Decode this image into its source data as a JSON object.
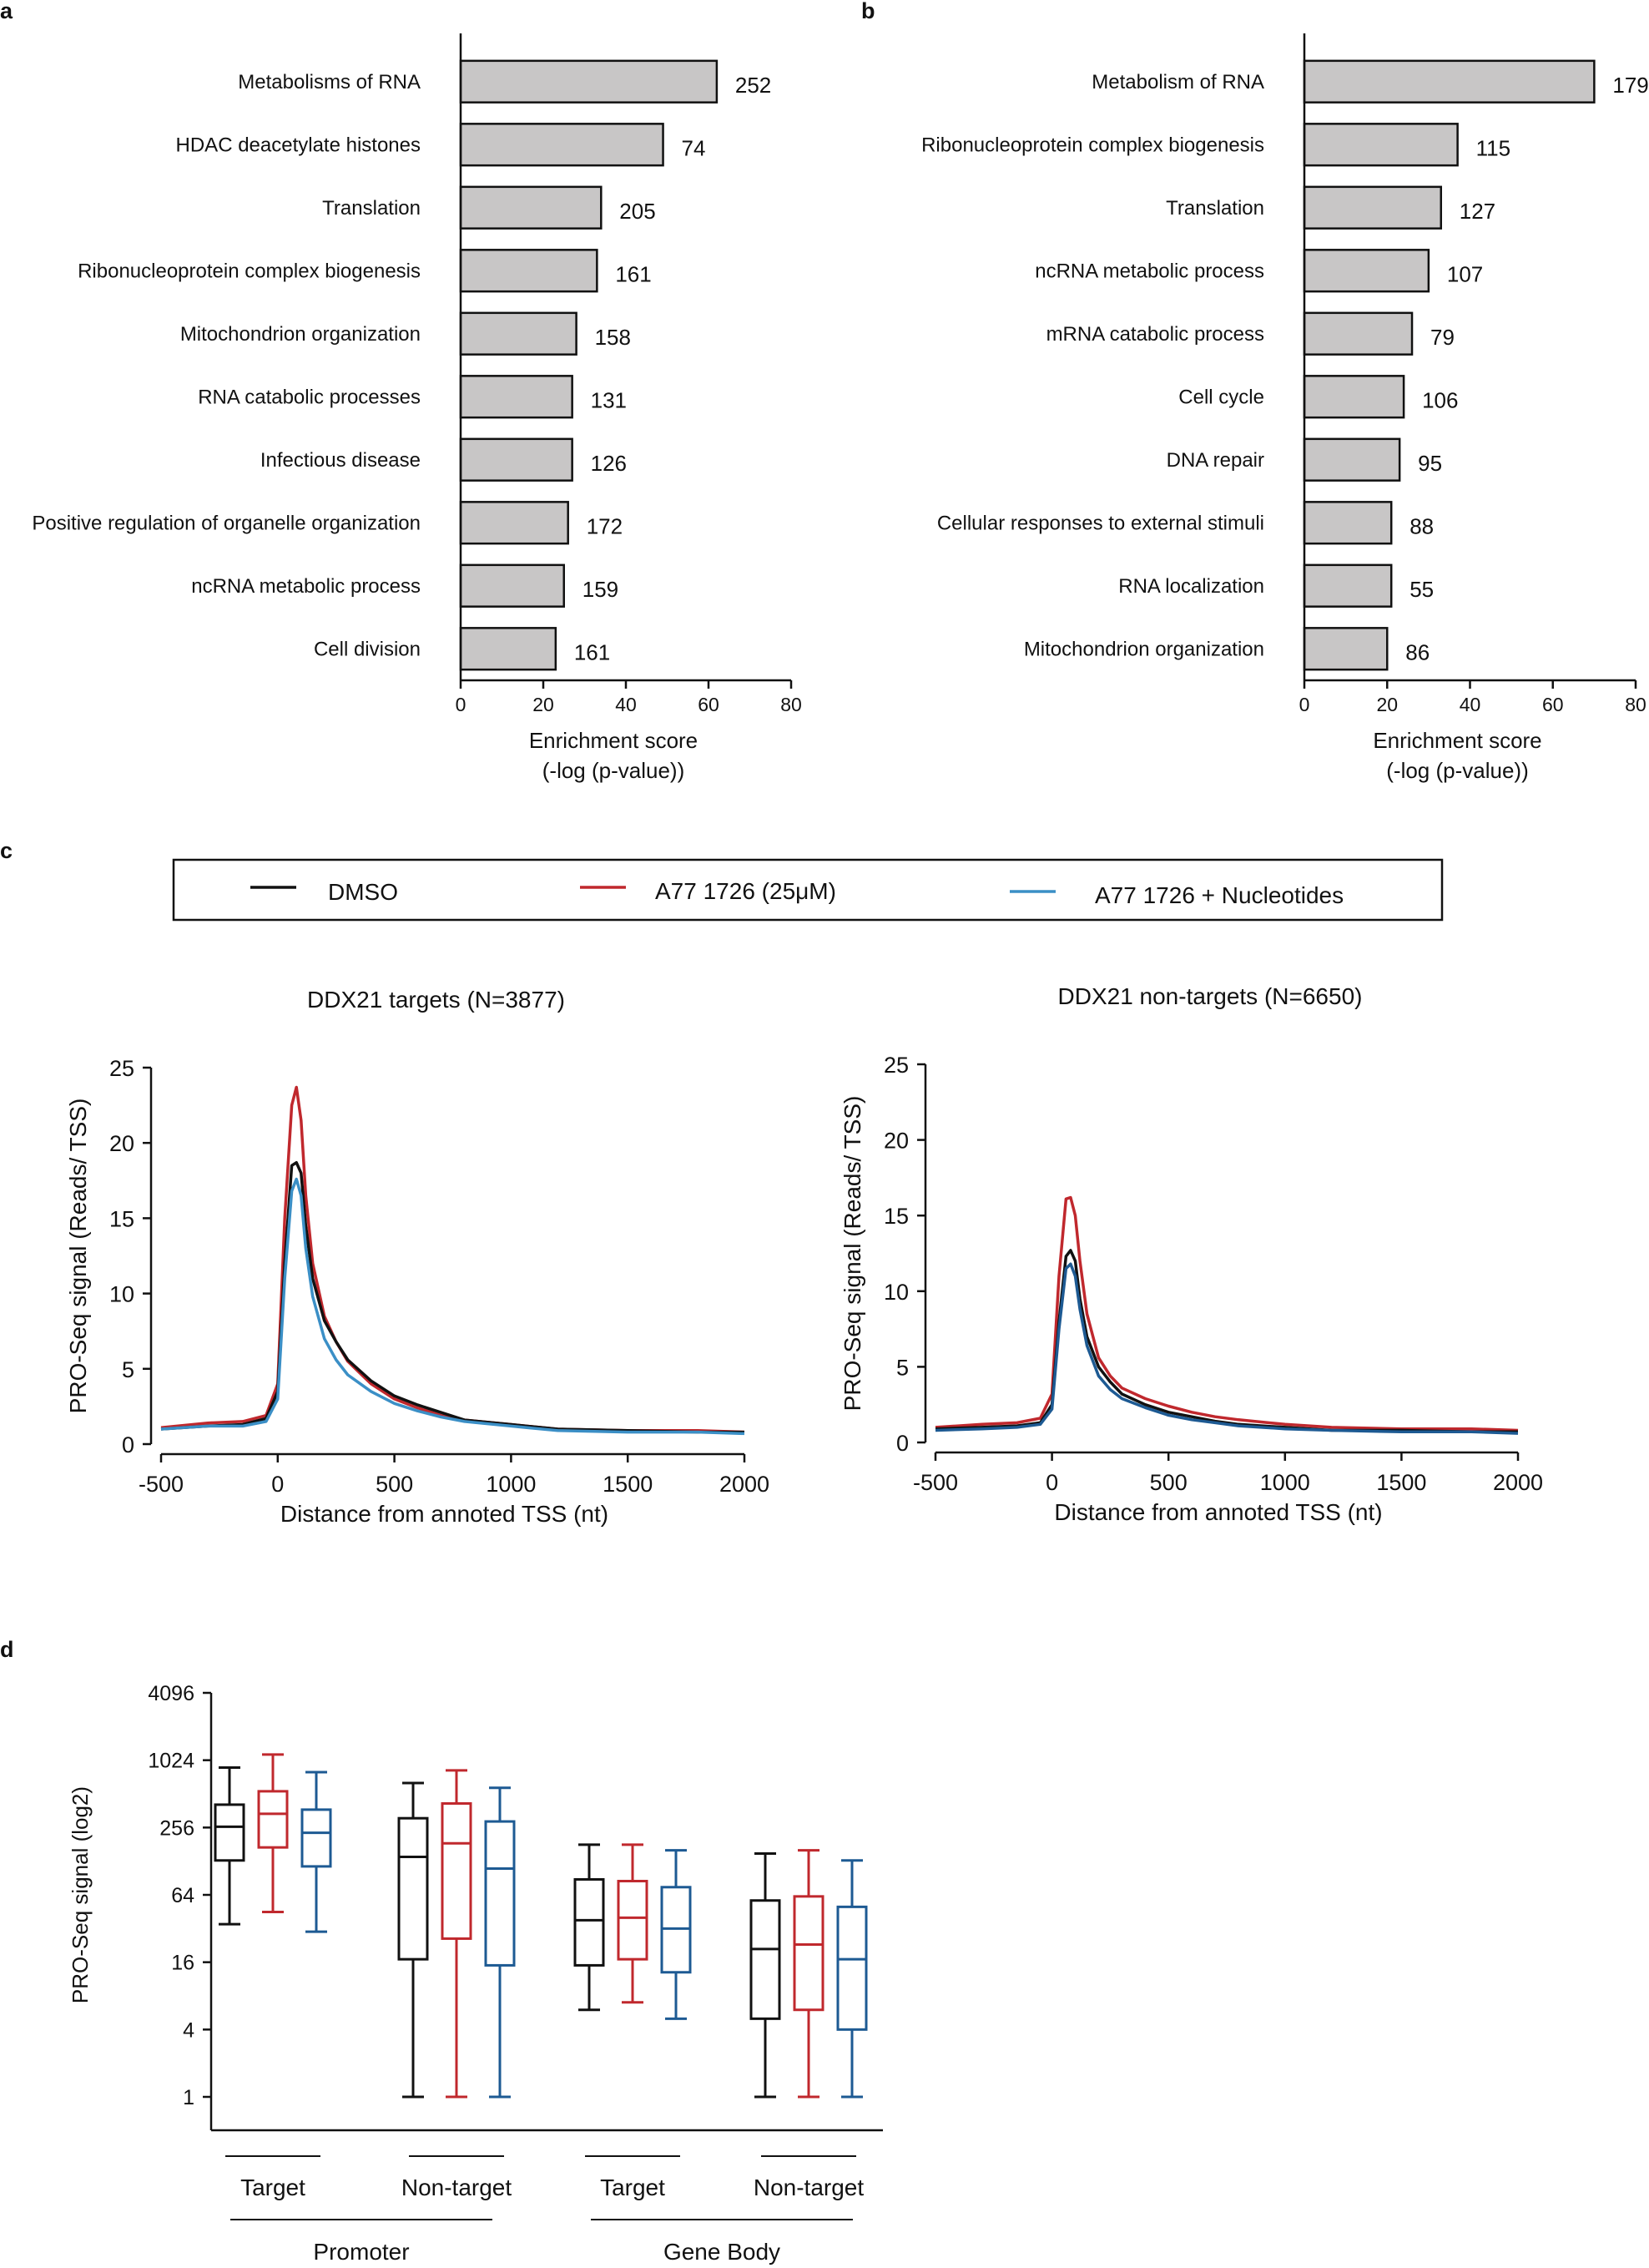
{
  "colors": {
    "bar_fill": "#c8c6c6",
    "bar_stroke": "#111111",
    "dmso": "#111111",
    "a77": "#c0282d",
    "nucleotides": "#3b8fc6",
    "nucleotides_dark": "#1d5a93"
  },
  "chart_data": [
    {
      "panel": "a",
      "type": "bar",
      "orientation": "horizontal",
      "categories": [
        "Metabolisms of RNA",
        "HDAC deacetylate histones",
        "Translation",
        "Ribonucleoprotein complex biogenesis",
        "Mitochondrion organization",
        "RNA catabolic processes",
        "Infectious disease",
        "Positive regulation of organelle organization",
        "ncRNA metabolic process",
        "Cell division"
      ],
      "values": [
        62,
        49,
        34,
        33,
        28,
        27,
        27,
        26,
        25,
        23
      ],
      "labels": [
        "252",
        "74",
        "205",
        "161",
        "158",
        "131",
        "126",
        "172",
        "159",
        "161"
      ],
      "xlabel": "Enrichment score",
      "xlabel2": "(-log (p-value))",
      "xlim": [
        0,
        80
      ],
      "xticks": [
        0,
        20,
        40,
        60,
        80
      ]
    },
    {
      "panel": "b",
      "type": "bar",
      "orientation": "horizontal",
      "categories": [
        "Metabolism of RNA",
        "Ribonucleoprotein complex biogenesis",
        "Translation",
        "ncRNA metabolic process",
        "mRNA catabolic process",
        "Cell cycle",
        "DNA repair",
        "Cellular responses to external stimuli",
        "RNA localization",
        "Mitochondrion organization"
      ],
      "values": [
        70,
        37,
        33,
        30,
        26,
        24,
        23,
        21,
        21,
        20
      ],
      "labels": [
        "179",
        "115",
        "127",
        "107",
        "79",
        "106",
        "95",
        "88",
        "55",
        "86"
      ],
      "xlabel": "Enrichment score",
      "xlabel2": "(-log (p-value))",
      "xlim": [
        0,
        80
      ],
      "xticks": [
        0,
        20,
        40,
        60,
        80
      ]
    },
    {
      "panel": "c-left",
      "type": "line",
      "title": "DDX21 targets (N=3877)",
      "xlabel": "Distance from annoted TSS (nt)",
      "ylabel": "PRO-Seq signal (Reads/ TSS)",
      "xlim": [
        -500,
        2000
      ],
      "ylim": [
        0,
        25
      ],
      "xticks": [
        -500,
        0,
        500,
        1000,
        1500,
        2000
      ],
      "yticks": [
        0,
        5,
        10,
        15,
        20,
        25
      ],
      "series": [
        {
          "name": "DMSO",
          "x": [
            -500,
            -300,
            -150,
            -50,
            0,
            30,
            60,
            80,
            100,
            120,
            150,
            200,
            250,
            300,
            400,
            500,
            600,
            700,
            800,
            1000,
            1200,
            1500,
            1800,
            2000
          ],
          "y": [
            1.0,
            1.2,
            1.3,
            1.7,
            3.5,
            12.0,
            18.5,
            18.7,
            18.0,
            14.5,
            11.0,
            8.2,
            6.8,
            5.6,
            4.2,
            3.2,
            2.6,
            2.1,
            1.6,
            1.3,
            1.0,
            0.9,
            0.8,
            0.8
          ]
        },
        {
          "name": "A77 1726 (25μM)",
          "x": [
            -500,
            -300,
            -150,
            -50,
            0,
            30,
            60,
            80,
            100,
            120,
            150,
            200,
            250,
            300,
            400,
            500,
            600,
            700,
            800,
            1000,
            1200,
            1500,
            1800,
            2000
          ],
          "y": [
            1.1,
            1.4,
            1.5,
            1.9,
            4.0,
            15.0,
            22.5,
            23.7,
            21.5,
            16.5,
            12.0,
            8.5,
            6.8,
            5.5,
            4.0,
            3.0,
            2.4,
            1.9,
            1.6,
            1.3,
            1.0,
            0.9,
            0.9,
            0.8
          ]
        },
        {
          "name": "A77 1726 + Nucleotides",
          "x": [
            -500,
            -300,
            -150,
            -50,
            0,
            30,
            60,
            80,
            100,
            120,
            150,
            200,
            250,
            300,
            400,
            500,
            600,
            700,
            800,
            1000,
            1200,
            1500,
            1800,
            2000
          ],
          "y": [
            1.0,
            1.2,
            1.2,
            1.5,
            3.0,
            11.0,
            16.8,
            17.6,
            16.5,
            13.0,
            9.8,
            7.0,
            5.6,
            4.6,
            3.5,
            2.7,
            2.2,
            1.8,
            1.5,
            1.2,
            0.9,
            0.8,
            0.8,
            0.7
          ]
        }
      ]
    },
    {
      "panel": "c-right",
      "type": "line",
      "title": "DDX21 non-targets (N=6650)",
      "xlabel": "Distance from annoted TSS (nt)",
      "ylabel": "PRO-Seq signal (Reads/ TSS)",
      "xlim": [
        -500,
        2000
      ],
      "ylim": [
        0,
        25
      ],
      "xticks": [
        -500,
        0,
        500,
        1000,
        1500,
        2000
      ],
      "yticks": [
        0,
        5,
        10,
        15,
        20,
        25
      ],
      "series": [
        {
          "name": "DMSO",
          "x": [
            -500,
            -300,
            -150,
            -50,
            0,
            30,
            60,
            80,
            100,
            120,
            150,
            200,
            250,
            300,
            400,
            500,
            600,
            700,
            800,
            1000,
            1200,
            1500,
            1800,
            2000
          ],
          "y": [
            0.9,
            1.0,
            1.1,
            1.3,
            2.5,
            8.0,
            12.3,
            12.7,
            12.0,
            9.5,
            7.0,
            5.0,
            4.0,
            3.2,
            2.5,
            2.0,
            1.7,
            1.4,
            1.2,
            1.0,
            0.8,
            0.8,
            0.7,
            0.7
          ]
        },
        {
          "name": "A77 1726 (25μM)",
          "x": [
            -500,
            -300,
            -150,
            -50,
            0,
            30,
            60,
            80,
            100,
            120,
            150,
            200,
            250,
            300,
            400,
            500,
            600,
            700,
            800,
            1000,
            1200,
            1500,
            1800,
            2000
          ],
          "y": [
            1.0,
            1.2,
            1.3,
            1.6,
            3.2,
            11.0,
            16.1,
            16.2,
            15.0,
            12.0,
            8.5,
            5.6,
            4.4,
            3.6,
            2.9,
            2.4,
            2.0,
            1.7,
            1.5,
            1.2,
            1.0,
            0.9,
            0.9,
            0.8
          ]
        },
        {
          "name": "A77 1726 + Nucleotides",
          "x": [
            -500,
            -300,
            -150,
            -50,
            0,
            30,
            60,
            80,
            100,
            120,
            150,
            200,
            250,
            300,
            400,
            500,
            600,
            700,
            800,
            1000,
            1200,
            1500,
            1800,
            2000
          ],
          "y": [
            0.8,
            0.9,
            1.0,
            1.2,
            2.2,
            7.5,
            11.5,
            11.8,
            11.0,
            8.8,
            6.4,
            4.4,
            3.5,
            2.9,
            2.3,
            1.8,
            1.5,
            1.3,
            1.1,
            0.9,
            0.8,
            0.7,
            0.7,
            0.6
          ]
        }
      ]
    },
    {
      "panel": "d",
      "type": "box",
      "ylabel": "PRO-Seq signal (log2)",
      "yscale": "log2",
      "ylim": [
        1,
        4096
      ],
      "yticks": [
        1,
        4,
        16,
        64,
        256,
        1024,
        4096
      ],
      "subgroup_labels": [
        "Target",
        "Non-target",
        "Target",
        "Non-target"
      ],
      "group_labels": [
        "Promoter",
        "Gene Body"
      ],
      "series_names": [
        "DMSO",
        "A77 1726 (25μM)",
        "A77 1726 + Nucleotides"
      ],
      "boxes": [
        {
          "group": "Promoter",
          "subgroup": "Target",
          "series": "DMSO",
          "min": 35,
          "q1": 130,
          "median": 260,
          "q3": 410,
          "max": 880
        },
        {
          "group": "Promoter",
          "subgroup": "Target",
          "series": "A77 1726 (25μM)",
          "min": 45,
          "q1": 170,
          "median": 340,
          "q3": 540,
          "max": 1150
        },
        {
          "group": "Promoter",
          "subgroup": "Target",
          "series": "A77 1726 + Nucleotides",
          "min": 30,
          "q1": 115,
          "median": 230,
          "q3": 370,
          "max": 800
        },
        {
          "group": "Promoter",
          "subgroup": "Non-target",
          "series": "DMSO",
          "min": 1,
          "q1": 17,
          "median": 140,
          "q3": 310,
          "max": 640
        },
        {
          "group": "Promoter",
          "subgroup": "Non-target",
          "series": "A77 1726 (25μM)",
          "min": 1,
          "q1": 26,
          "median": 185,
          "q3": 420,
          "max": 830
        },
        {
          "group": "Promoter",
          "subgroup": "Non-target",
          "series": "A77 1726 + Nucleotides",
          "min": 1,
          "q1": 15,
          "median": 110,
          "q3": 290,
          "max": 580
        },
        {
          "group": "Gene Body",
          "subgroup": "Target",
          "series": "DMSO",
          "min": 6,
          "q1": 15,
          "median": 38,
          "q3": 88,
          "max": 180
        },
        {
          "group": "Gene Body",
          "subgroup": "Target",
          "series": "A77 1726 (25μM)",
          "min": 7,
          "q1": 17,
          "median": 40,
          "q3": 85,
          "max": 180
        },
        {
          "group": "Gene Body",
          "subgroup": "Target",
          "series": "A77 1726 + Nucleotides",
          "min": 5,
          "q1": 13,
          "median": 32,
          "q3": 75,
          "max": 160
        },
        {
          "group": "Gene Body",
          "subgroup": "Non-target",
          "series": "DMSO",
          "min": 1,
          "q1": 5,
          "median": 21,
          "q3": 57,
          "max": 150
        },
        {
          "group": "Gene Body",
          "subgroup": "Non-target",
          "series": "A77 1726 (25μM)",
          "min": 1,
          "q1": 6,
          "median": 23,
          "q3": 62,
          "max": 160
        },
        {
          "group": "Gene Body",
          "subgroup": "Non-target",
          "series": "A77 1726 + Nucleotides",
          "min": 1,
          "q1": 4,
          "median": 17,
          "q3": 50,
          "max": 130
        }
      ]
    }
  ],
  "panels": {
    "a": {
      "letter": "a"
    },
    "b": {
      "letter": "b"
    },
    "c": {
      "letter": "c",
      "legend": [
        "DMSO",
        "A77 1726 (25μM)",
        "A77 1726 + Nucleotides"
      ]
    },
    "d": {
      "letter": "d"
    }
  }
}
